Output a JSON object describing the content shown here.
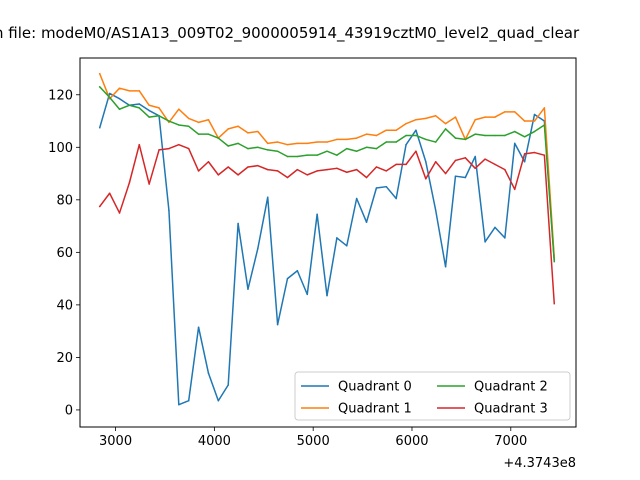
{
  "chart_data": {
    "type": "line",
    "title": "n file: modeM0/AS1A13_009T02_9000005914_43919cztM0_level2_quad_clear",
    "xlabel": "",
    "ylabel": "",
    "x_offset_label": "+4.3743e8",
    "xlim": [
      2640,
      7660
    ],
    "ylim": [
      -6.5,
      134
    ],
    "xticks": [
      3000,
      4000,
      5000,
      6000,
      7000
    ],
    "yticks": [
      0,
      20,
      40,
      60,
      80,
      100,
      120
    ],
    "grid": false,
    "legend_position": "lower-right",
    "legend_columns": 2,
    "x": [
      2840,
      2940,
      3040,
      3140,
      3240,
      3340,
      3440,
      3540,
      3640,
      3740,
      3840,
      3940,
      4040,
      4140,
      4240,
      4340,
      4440,
      4540,
      4640,
      4740,
      4840,
      4940,
      5040,
      5140,
      5240,
      5340,
      5440,
      5540,
      5640,
      5740,
      5840,
      5940,
      6040,
      6140,
      6240,
      6340,
      6440,
      6540,
      6640,
      6740,
      6840,
      6940,
      7040,
      7140,
      7240,
      7340,
      7440
    ],
    "series": [
      {
        "name": "Quadrant 0",
        "color": "#1f77b4",
        "values": [
          107.5,
          120.5,
          118.5,
          116.0,
          116.5,
          114.0,
          112.0,
          76.0,
          2.0,
          3.5,
          31.5,
          14.0,
          3.5,
          9.5,
          71.0,
          46.0,
          61.5,
          81.0,
          32.5,
          50.0,
          53.0,
          44.0,
          74.5,
          43.5,
          65.5,
          62.5,
          80.5,
          71.5,
          84.5,
          85.0,
          80.5,
          101.0,
          106.5,
          94.5,
          76.0,
          54.5,
          89.0,
          88.5,
          96.5,
          64.0,
          69.5,
          65.5,
          101.5,
          94.5,
          112.5,
          110.0,
          57.0
        ]
      },
      {
        "name": "Quadrant 1",
        "color": "#ff7f0e",
        "values": [
          128.0,
          118.5,
          122.5,
          121.5,
          121.5,
          116.0,
          115.0,
          109.5,
          114.5,
          111.0,
          109.5,
          110.5,
          103.5,
          107.0,
          108.0,
          105.5,
          106.0,
          101.5,
          102.0,
          101.0,
          101.5,
          101.5,
          102.0,
          102.0,
          103.0,
          103.0,
          103.5,
          105.0,
          104.5,
          106.5,
          106.5,
          109.0,
          110.5,
          111.0,
          112.0,
          109.0,
          111.5,
          103.0,
          110.5,
          111.5,
          111.5,
          113.5,
          113.5,
          110.0,
          110.0,
          115.0,
          58.0
        ]
      },
      {
        "name": "Quadrant 2",
        "color": "#2ca02c",
        "values": [
          123.0,
          119.0,
          114.5,
          116.0,
          115.0,
          111.5,
          112.0,
          110.0,
          108.5,
          108.0,
          105.0,
          105.0,
          103.5,
          100.5,
          101.5,
          99.5,
          100.0,
          99.0,
          98.5,
          96.5,
          96.5,
          97.0,
          97.0,
          98.5,
          97.0,
          99.5,
          98.5,
          100.0,
          99.5,
          102.0,
          102.0,
          104.5,
          104.5,
          103.0,
          102.0,
          107.0,
          103.5,
          103.0,
          105.0,
          104.5,
          104.5,
          104.5,
          106.0,
          104.0,
          106.0,
          108.5,
          56.5
        ]
      },
      {
        "name": "Quadrant 3",
        "color": "#d62728",
        "values": [
          77.5,
          82.5,
          75.0,
          86.5,
          101.0,
          86.0,
          99.0,
          99.5,
          101.0,
          99.5,
          91.0,
          94.5,
          89.5,
          92.5,
          89.5,
          92.5,
          93.0,
          91.5,
          91.0,
          88.5,
          91.5,
          89.5,
          91.0,
          91.5,
          92.0,
          90.5,
          91.5,
          88.5,
          92.5,
          91.0,
          93.5,
          93.5,
          98.5,
          88.0,
          94.5,
          90.0,
          95.0,
          96.0,
          92.0,
          95.5,
          93.5,
          91.5,
          84.0,
          97.5,
          98.0,
          97.0,
          40.5
        ]
      }
    ]
  }
}
